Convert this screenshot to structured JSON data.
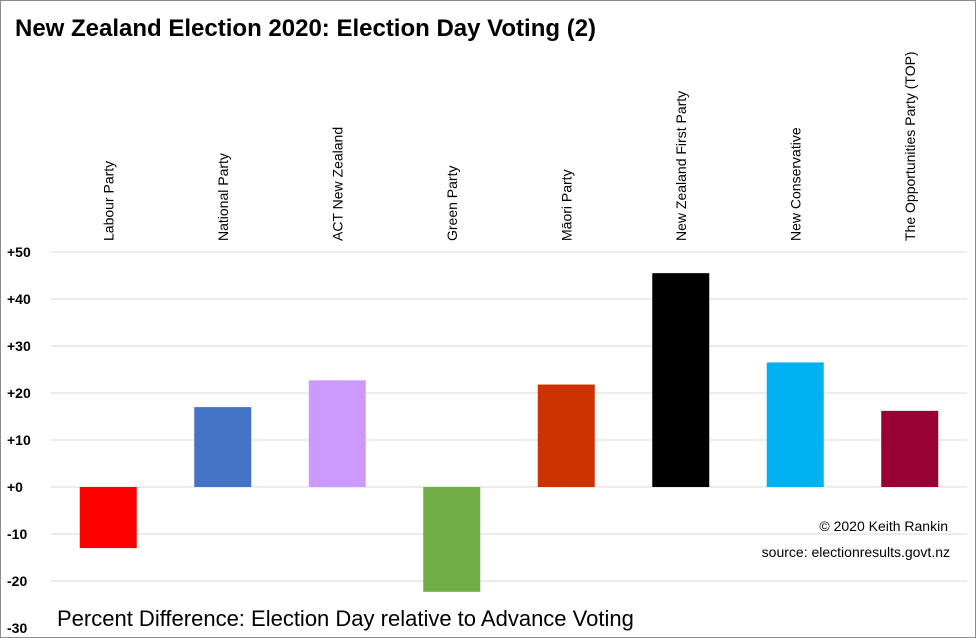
{
  "chart_data": {
    "type": "bar",
    "title": "New Zealand Election 2020: Election Day Voting (2)",
    "categories": [
      "Labour Party",
      "National Party",
      "ACT New Zealand",
      "Green Party",
      "Māori Party",
      "New Zealand First Party",
      "New Conservative",
      "The Opportunities Party (TOP)"
    ],
    "values": [
      -13,
      17,
      22.7,
      -22.3,
      21.8,
      45.5,
      26.5,
      16.2
    ],
    "colors": [
      "#ff0000",
      "#4472c4",
      "#cc99ff",
      "#70ad47",
      "#cc3300",
      "#000000",
      "#00b0f0",
      "#990033"
    ],
    "ylim": [
      -30,
      50
    ],
    "yticks": [
      -30,
      -20,
      -10,
      0,
      10,
      20,
      30,
      40,
      50
    ],
    "ytick_labels": [
      "-30",
      "-20",
      "-10",
      "+0",
      "+10",
      "+20",
      "+30",
      "+40",
      "+50"
    ],
    "grid": true,
    "xlabel": "",
    "ylabel": "",
    "caption": "Percent Difference: Election Day relative to Advance Voting",
    "credit": "© 2020 Keith Rankin",
    "source": "source:  electionresults.govt.nz"
  }
}
